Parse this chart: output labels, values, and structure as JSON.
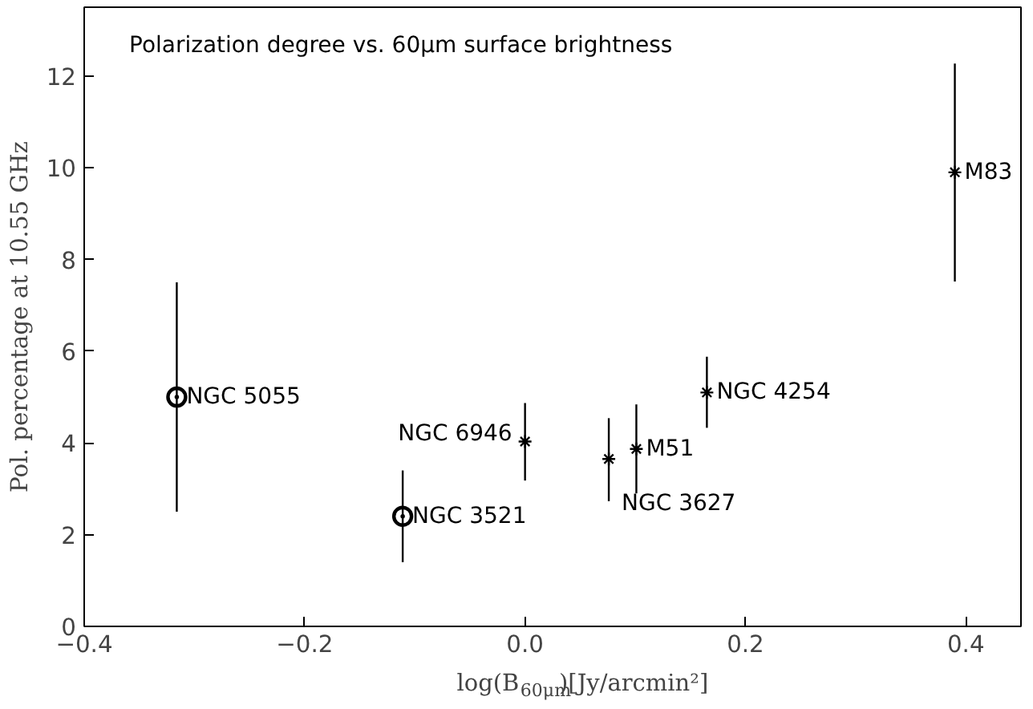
{
  "chart_data": {
    "type": "scatter",
    "xlabel": "log(B$_{60μm}$)[Jy/arcmin²]",
    "ylabel": "Pol. percentage at 10.55 GHz",
    "xlim": [
      -0.4,
      0.45
    ],
    "xticks": [
      {
        "value": -0.4,
        "label": "−0.4"
      },
      {
        "value": -0.2,
        "label": "−0.2"
      },
      {
        "value": 0,
        "label": "0.0"
      },
      0.2,
      0.4
    ],
    "ylim": [
      0,
      13.5
    ],
    "yticks": [
      0,
      2,
      4,
      6,
      8,
      10,
      12
    ],
    "grid": false,
    "series": [
      {
        "color": "#000000",
        "marker": "circle",
        "x": [
          -0.316,
          -0.111
        ],
        "values": [
          5.0,
          2.4
        ],
        "errors": [
          [
            2.5,
            7.5
          ],
          [
            1.4,
            3.4
          ]
        ]
      },
      {
        "color": "#000000",
        "marker": "cross",
        "x": [
          0.0,
          0.076,
          0.101,
          0.165,
          0.39
        ],
        "values": [
          4.03,
          3.65,
          3.87,
          5.1,
          9.9
        ],
        "errors": [
          [
            3.18,
            4.87
          ],
          [
            2.73,
            4.54
          ],
          [
            2.9,
            4.84
          ],
          [
            4.33,
            5.88
          ],
          [
            7.52,
            12.27
          ]
        ]
      }
    ],
    "annotations": [
      "Polarization degree vs. 60μm surface brightness",
      {
        "text": "NGC 5055",
        "x": -0.316,
        "y": 5.0
      },
      {
        "text": "NGC 3521",
        "x": -0.111,
        "y": 2.4
      },
      {
        "text": "NGC 6946",
        "x": 0.0,
        "y": 4.03
      },
      {
        "text": "NGC 3627",
        "x": 0.076,
        "y": 3.65
      },
      {
        "text": "M51",
        "x": 0.101,
        "y": 3.87
      },
      {
        "text": "NGC 4254",
        "x": 0.165,
        "y": 5.1
      },
      {
        "text": "M83",
        "x": 0.39,
        "y": 9.9
      }
    ]
  }
}
